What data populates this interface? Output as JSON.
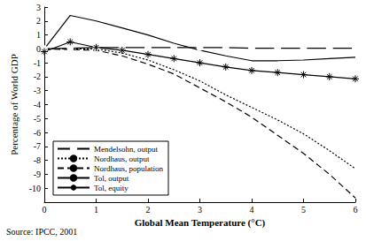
{
  "chart_data": {
    "type": "line",
    "source": "Source: IPCC, 2001",
    "x_label": "Global Mean Temperature (°C)",
    "y_label": "Percentage of World GDP",
    "x": [
      0,
      0.5,
      1,
      1.5,
      2,
      2.5,
      3,
      3.5,
      4,
      4.5,
      5,
      5.5,
      6
    ],
    "series": [
      {
        "name": "Mendelsohn, output",
        "color": "#000000",
        "marker": "circle",
        "line_style": "solid",
        "values": [
          0,
          0.05,
          0.1,
          0.1,
          0.1,
          0.1,
          0.1,
          0.1,
          0.05,
          0.05,
          0.05,
          0.05,
          0.05
        ]
      },
      {
        "name": "Nordhaus, output",
        "color": "#000000",
        "line_style": "dotted",
        "values": [
          0,
          0,
          0,
          -0.3,
          -0.8,
          -1.5,
          -2.3,
          -3.3,
          -4.2,
          -5.1,
          -6.1,
          -7.3,
          -8.6
        ]
      },
      {
        "name": "Nordhaus, population",
        "color": "#000000",
        "line_style": "dashed",
        "values": [
          0,
          -0.05,
          -0.1,
          -0.5,
          -1.1,
          -1.8,
          -2.8,
          -3.8,
          -4.9,
          -6.2,
          -7.5,
          -9,
          -10.7
        ]
      },
      {
        "name": "Tol, output",
        "color": "#000000",
        "line_style": "solid",
        "values": [
          0,
          2.4,
          2.0,
          1.5,
          1.0,
          0.4,
          -0.1,
          -0.5,
          -0.85,
          -0.85,
          -0.8,
          -0.7,
          -0.6
        ]
      },
      {
        "name": "Tol, equity",
        "color": "#000000",
        "marker": "asterisk",
        "line_style": "solid",
        "values": [
          -0.2,
          0.5,
          0.1,
          -0.1,
          -0.4,
          -0.7,
          -1.0,
          -1.3,
          -1.55,
          -1.7,
          -1.85,
          -2.0,
          -2.15
        ]
      }
    ],
    "xlim": [
      0,
      6
    ],
    "xticks": [
      0,
      1,
      2,
      3,
      4,
      5,
      6
    ],
    "ylim": [
      -11,
      3
    ],
    "yticks": [
      -10,
      -9,
      -8,
      -7,
      -6,
      -5,
      -4,
      -3,
      -2,
      -1,
      0,
      1,
      2,
      3
    ],
    "grid": false,
    "legend": "lower left"
  }
}
